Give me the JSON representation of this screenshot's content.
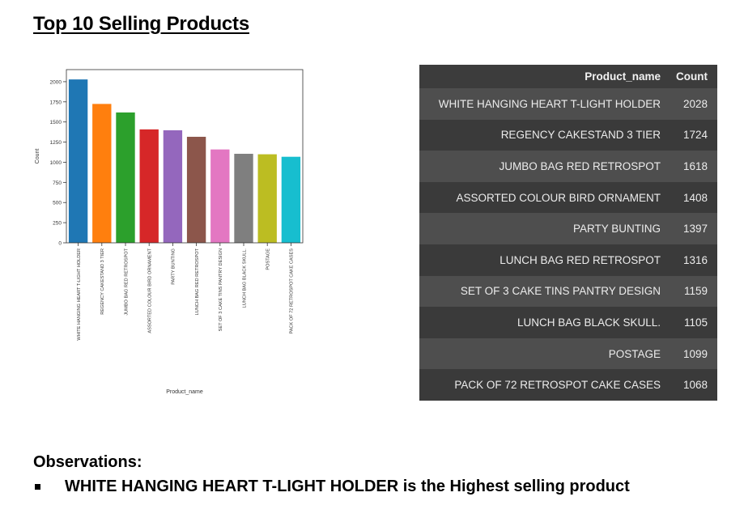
{
  "page": {
    "title": "Top 10 Selling Products"
  },
  "chart_data": {
    "type": "bar",
    "xlabel": "Product_name",
    "ylabel": "Count",
    "ylim": [
      0,
      2150
    ],
    "yticks": [
      0,
      250,
      500,
      750,
      1000,
      1250,
      1500,
      1750,
      2000
    ],
    "categories": [
      "WHITE HANGING HEART T-LIGHT HOLDER",
      "REGENCY CAKESTAND 3 TIER",
      "JUMBO BAG RED RETROSPOT",
      "ASSORTED COLOUR BIRD ORNAMENT",
      "PARTY BUNTING",
      "LUNCH BAG RED RETROSPOT",
      "SET OF 3 CAKE TINS PANTRY DESIGN",
      "LUNCH BAG  BLACK SKULL.",
      "POSTAGE",
      "PACK OF 72 RETROSPOT CAKE CASES"
    ],
    "values": [
      2028,
      1724,
      1618,
      1408,
      1397,
      1316,
      1159,
      1105,
      1099,
      1068
    ],
    "colors": [
      "#1f77b4",
      "#ff7f0e",
      "#2ca02c",
      "#d62728",
      "#9467bd",
      "#8c564b",
      "#e377c2",
      "#7f7f7f",
      "#bcbd22",
      "#17becf"
    ],
    "grid": false
  },
  "table": {
    "headers": [
      "Product_name",
      "Count"
    ],
    "rows": [
      {
        "name": "WHITE HANGING HEART T-LIGHT HOLDER",
        "count": "2028"
      },
      {
        "name": "REGENCY CAKESTAND 3 TIER",
        "count": "1724"
      },
      {
        "name": "JUMBO BAG RED RETROSPOT",
        "count": "1618"
      },
      {
        "name": "ASSORTED COLOUR BIRD ORNAMENT",
        "count": "1408"
      },
      {
        "name": "PARTY BUNTING",
        "count": "1397"
      },
      {
        "name": "LUNCH BAG RED RETROSPOT",
        "count": "1316"
      },
      {
        "name": "SET OF 3 CAKE TINS PANTRY DESIGN",
        "count": "1159"
      },
      {
        "name": "LUNCH BAG BLACK SKULL.",
        "count": "1105"
      },
      {
        "name": "POSTAGE",
        "count": "1099"
      },
      {
        "name": "PACK OF 72 RETROSPOT CAKE CASES",
        "count": "1068"
      }
    ]
  },
  "observations": {
    "title": "Observations:",
    "items": [
      "WHITE HANGING HEART T-LIGHT HOLDER is the Highest selling product"
    ]
  }
}
